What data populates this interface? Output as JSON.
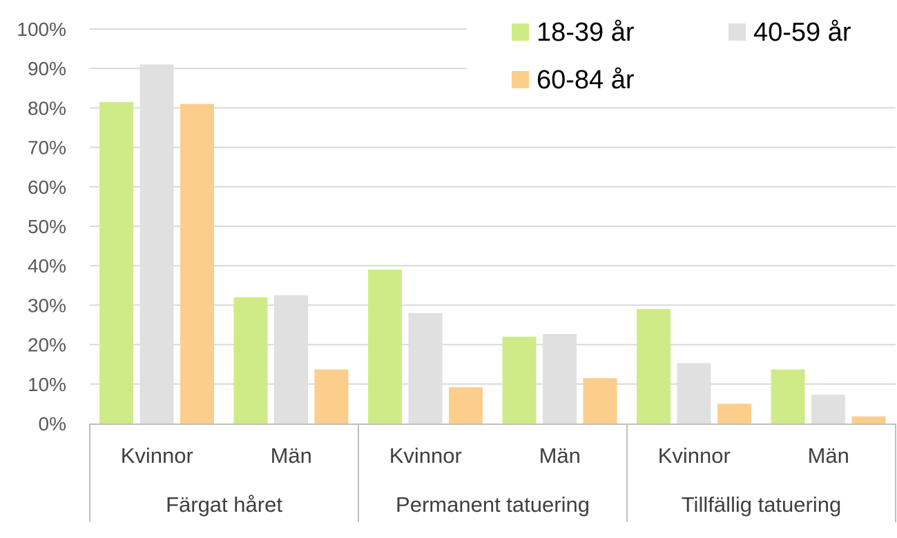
{
  "chart_data": {
    "type": "bar",
    "title": "",
    "xlabel": "",
    "ylabel": "",
    "ylim": [
      0,
      100
    ],
    "y_ticks": [
      "0%",
      "10%",
      "20%",
      "30%",
      "40%",
      "50%",
      "60%",
      "70%",
      "80%",
      "90%",
      "100%"
    ],
    "grid": true,
    "legend_position": "top-right",
    "groups": [
      {
        "label": "Färgat håret",
        "categories": [
          "Kvinnor",
          "Män"
        ]
      },
      {
        "label": "Permanent tatuering",
        "categories": [
          "Kvinnor",
          "Män"
        ]
      },
      {
        "label": "Tillfällig tatuering",
        "categories": [
          "Kvinnor",
          "Män"
        ]
      }
    ],
    "series": [
      {
        "name": "18-39 år",
        "color": "#cfeb87",
        "values": [
          81.5,
          32,
          39,
          22,
          29,
          13.7
        ]
      },
      {
        "name": "40-59 år",
        "color": "#e0e0e0",
        "values": [
          91,
          32.5,
          28,
          22.7,
          15.3,
          7.3
        ]
      },
      {
        "name": "60-84 år",
        "color": "#fcce8c",
        "values": [
          81,
          13.7,
          9.2,
          11.5,
          5,
          1.8
        ]
      }
    ],
    "colors": {
      "grid": "#d9d9d9",
      "axis": "#bfbfbf"
    }
  }
}
